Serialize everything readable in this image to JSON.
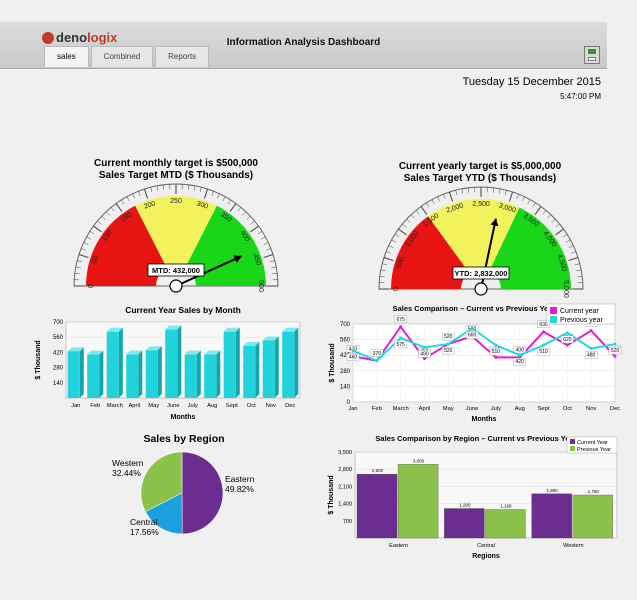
{
  "app": {
    "logo_text_dark": "deno",
    "logo_text_accent": "logix",
    "title": "Information Analysis Dashboard",
    "tabs": [
      "sales",
      "Combined",
      "Reports"
    ],
    "active_tab": "sales",
    "date": "Tuesday 15 December 2015",
    "time": "5:47:00 PM"
  },
  "gauges": [
    {
      "title_line1": "Current monthly target is  $500,000",
      "title_line2": "Sales Target MTD ($ Thousands)",
      "min": 0,
      "max": 500,
      "ticks": [
        "0",
        "50",
        "100",
        "150",
        "200",
        "250",
        "300",
        "350",
        "400",
        "450",
        "500"
      ],
      "bands": [
        {
          "from": 0,
          "to": 175,
          "color": "#e81414"
        },
        {
          "from": 175,
          "to": 325,
          "color": "#f2f25c"
        },
        {
          "from": 325,
          "to": 500,
          "color": "#19d619"
        }
      ],
      "value": 432,
      "value_label": "MTD: 432,000"
    },
    {
      "title_line1": "Current yearly target is  $5,000,000",
      "title_line2": "Sales Target YTD ($ Thousands)",
      "min": 0,
      "max": 5000,
      "ticks": [
        "0",
        "500",
        "1,000",
        "1,500",
        "2,000",
        "2,500",
        "3,000",
        "3,500",
        "4,000",
        "4,500",
        "5,000"
      ],
      "bands": [
        {
          "from": 0,
          "to": 1500,
          "color": "#e81414"
        },
        {
          "from": 1500,
          "to": 3200,
          "color": "#f2f25c"
        },
        {
          "from": 3200,
          "to": 5000,
          "color": "#19d619"
        }
      ],
      "value": 2832,
      "value_label": "YTD: 2,832,000"
    }
  ],
  "chart_data": [
    {
      "type": "bar",
      "title": "Current Year Sales by Month",
      "xlabel": "Months",
      "ylabel": "$ Thousand",
      "categories": [
        "Jan",
        "Feb",
        "March",
        "April",
        "May",
        "June",
        "July",
        "Aug",
        "Sept",
        "Oct",
        "Nov",
        "Dec"
      ],
      "values": [
        430,
        400,
        610,
        400,
        440,
        630,
        400,
        400,
        610,
        480,
        530,
        610
      ],
      "ylim": [
        0,
        700
      ],
      "yticks": [
        "140",
        "280",
        "420",
        "560",
        "700"
      ],
      "color": "#23d3dc"
    },
    {
      "type": "line",
      "title": "Sales Comparison – Current  vs Previous Year",
      "xlabel": "Months",
      "ylabel": "$ Thousand",
      "categories": [
        "Jan",
        "Feb",
        "March",
        "April",
        "May",
        "June",
        "July",
        "Aug",
        "Sept",
        "Oct",
        "Nov",
        "Dec"
      ],
      "ylim": [
        0,
        700
      ],
      "yticks": [
        "0",
        "140",
        "280",
        "420",
        "560",
        "700"
      ],
      "legend": "top-right",
      "series": [
        {
          "name": "Current year",
          "color": "#e01fd0",
          "values": [
            410,
            370,
            675,
            390,
            520,
            590,
            400,
            400,
            630,
            510,
            640,
            410
          ],
          "labels": [
            "410",
            "370",
            "675",
            "390",
            "520",
            "590",
            "400",
            "400",
            "630",
            "510",
            "640",
            "410"
          ]
        },
        {
          "name": "Previous year",
          "color": "#22d8dd",
          "values": [
            460,
            370,
            575,
            490,
            520,
            660,
            510,
            420,
            510,
            620,
            480,
            520
          ],
          "labels": [
            "460",
            "",
            "575",
            "490",
            "520",
            "660",
            "510",
            "420",
            "510",
            "620",
            "480",
            "520"
          ]
        }
      ]
    },
    {
      "type": "pie",
      "title": "Sales by Region",
      "slices": [
        {
          "name": "Eastern",
          "value": 49.82,
          "label": "49.82%",
          "color": "#6b2d8f"
        },
        {
          "name": "Central",
          "value": 17.56,
          "label": "17.56%",
          "color": "#1aa0e0"
        },
        {
          "name": "Western",
          "value": 32.44,
          "label": "32.44%",
          "color": "#8bc34a"
        }
      ]
    },
    {
      "type": "bar",
      "title": "Sales Comparison by Region – Current vs Previous Year",
      "xlabel": "Regions",
      "ylabel": "$ Thousand",
      "categories": [
        "Eastern",
        "Central",
        "Western"
      ],
      "ylim": [
        0,
        3500
      ],
      "yticks": [
        "700",
        "1,400",
        "2,100",
        "2,800",
        "3,500"
      ],
      "legend": "top-right",
      "series": [
        {
          "name": "Current Year",
          "color": "#6b2d8f",
          "values": [
            2600,
            1200,
            1800
          ],
          "labels": [
            "2,600",
            "1,200",
            "1,800"
          ]
        },
        {
          "name": "Previous Year",
          "color": "#8bc34a",
          "values": [
            3000,
            1160,
            1750
          ],
          "labels": [
            "3,000",
            "1,160",
            "1,750"
          ]
        }
      ]
    }
  ]
}
